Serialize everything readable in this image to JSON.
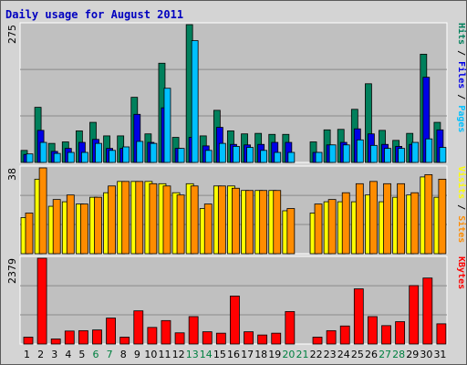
{
  "chart_data": {
    "title": "Daily usage for August 2011",
    "type": "bar",
    "categories": [
      "1",
      "2",
      "3",
      "4",
      "5",
      "6",
      "7",
      "8",
      "9",
      "10",
      "11",
      "12",
      "13",
      "14",
      "15",
      "16",
      "17",
      "18",
      "19",
      "20",
      "21",
      "22",
      "23",
      "24",
      "25",
      "26",
      "27",
      "28",
      "29",
      "30",
      "31"
    ],
    "weekend_days": [
      "6",
      "7",
      "13",
      "14",
      "20",
      "21",
      "27",
      "28"
    ],
    "colors": {
      "hits": "#00805c",
      "files": "#0000e6",
      "pages": "#00c0ff",
      "visits": "#ffff00",
      "sites": "#ff8c00",
      "kbytes": "#ff0000",
      "weekday_label": "#000000",
      "weekend_label": "#008040"
    },
    "panels": [
      {
        "ymax_label": "275",
        "legend": [
          "Pages",
          "Files",
          "Hits"
        ],
        "series": [
          {
            "name": "Hits",
            "values": [
              24,
              110,
              38,
              41,
              63,
              80,
              53,
              53,
              130,
              57,
              198,
              50,
              275,
              53,
              104,
              63,
              57,
              58,
              56,
              56,
              0,
              41,
              65,
              66,
              106,
              157,
              64,
              44,
              58,
              216,
              80
            ]
          },
          {
            "name": "Files",
            "values": [
              16,
              64,
              22,
              28,
              40,
              46,
              28,
              28,
              96,
              40,
              109,
              28,
              50,
              33,
              70,
              36,
              35,
              36,
              40,
              40,
              0,
              20,
              35,
              40,
              67,
              57,
              36,
              32,
              36,
              170,
              65
            ]
          },
          {
            "name": "Pages",
            "values": [
              17,
              40,
              18,
              20,
              20,
              38,
              24,
              31,
              42,
              38,
              148,
              28,
              243,
              24,
              38,
              32,
              30,
              24,
              20,
              20,
              0,
              20,
              35,
              35,
              45,
              34,
              28,
              28,
              40,
              47,
              30
            ]
          }
        ]
      },
      {
        "ymax_label": "38",
        "legend": [
          "Sites",
          "Visits"
        ],
        "series": [
          {
            "name": "Visits",
            "values": [
              16,
              33,
              21,
              23,
              22,
              25,
              27,
              32,
              32,
              32,
              31,
              27,
              31,
              20,
              30,
              30,
              28,
              28,
              28,
              19,
              0,
              18,
              23,
              23,
              23,
              26,
              23,
              25,
              26,
              34,
              25
            ]
          },
          {
            "name": "Sites",
            "values": [
              18,
              38,
              24,
              26,
              22,
              25,
              30,
              32,
              32,
              31,
              30,
              26,
              30,
              22,
              30,
              29,
              28,
              28,
              28,
              20,
              0,
              22,
              24,
              27,
              31,
              32,
              31,
              31,
              27,
              35,
              33
            ]
          }
        ]
      },
      {
        "ymax_label": "2379",
        "legend": [
          "KBytes"
        ],
        "series": [
          {
            "name": "KBytes",
            "values": [
              190,
              2379,
              140,
              360,
              370,
              390,
              720,
              190,
              920,
              460,
              650,
              310,
              760,
              340,
              300,
              1330,
              340,
              250,
              300,
              900,
              0,
              190,
              370,
              500,
              1530,
              760,
              510,
              620,
              1620,
              1830,
              560
            ]
          }
        ]
      }
    ]
  }
}
